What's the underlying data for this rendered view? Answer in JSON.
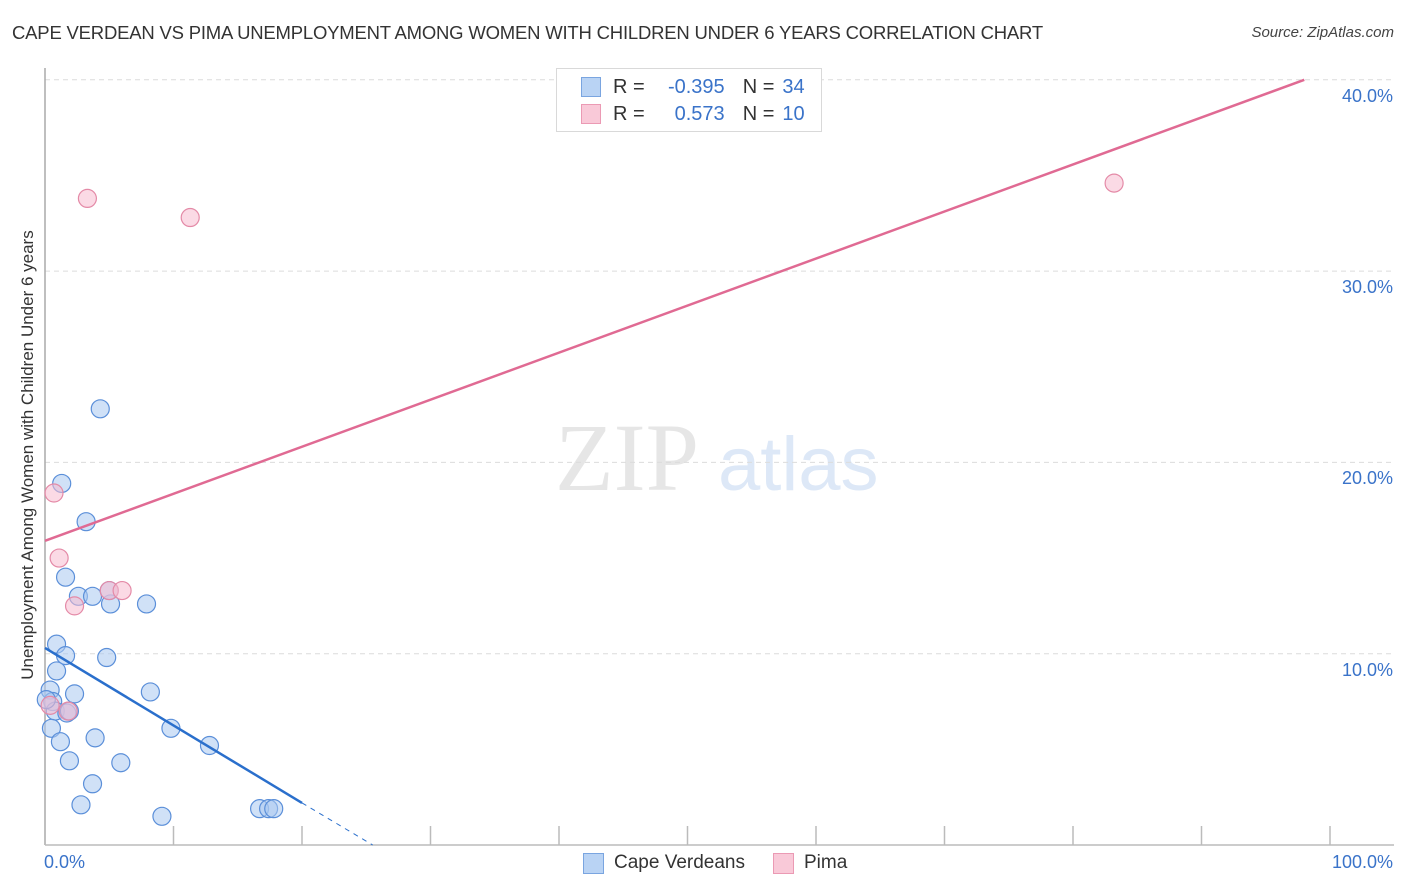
{
  "header": {
    "title": "CAPE VERDEAN VS PIMA UNEMPLOYMENT AMONG WOMEN WITH CHILDREN UNDER 6 YEARS CORRELATION CHART",
    "source": "Source: ZipAtlas.com"
  },
  "legend": {
    "rows": [
      {
        "r_label": "R =",
        "r_value": "-0.395",
        "n_label": "N =",
        "n_value": "34"
      },
      {
        "r_label": "R =",
        "r_value": "0.573",
        "n_label": "N =",
        "n_value": "10"
      }
    ],
    "series": [
      {
        "name": "Cape Verdeans",
        "color": "#a9c8f0"
      },
      {
        "name": "Pima",
        "color": "#f7bccf"
      }
    ]
  },
  "axes": {
    "y_label": "Unemployment Among Women with Children Under 6 years",
    "x_min_label": "0.0%",
    "x_max_label": "100.0%",
    "y_tick_labels": [
      "10.0%",
      "20.0%",
      "30.0%",
      "40.0%"
    ]
  },
  "watermark": {
    "zip": "ZIP",
    "atlas": "atlas"
  },
  "colors": {
    "blue_fill": "#a9c8f0",
    "blue_stroke": "#5b8fd9",
    "blue_line": "#2a6fcc",
    "pink_fill": "#f7bccf",
    "pink_stroke": "#e48aa7",
    "pink_line": "#e06a93",
    "accent_text": "#3a73c9"
  },
  "chart_data": {
    "type": "scatter",
    "title": "CAPE VERDEAN VS PIMA UNEMPLOYMENT AMONG WOMEN WITH CHILDREN UNDER 6 YEARS CORRELATION CHART",
    "xlabel": "",
    "ylabel": "Unemployment Among Women with Children Under 6 years",
    "xlim": [
      0,
      100
    ],
    "ylim": [
      0,
      41
    ],
    "x_ticks": [
      "0.0%",
      "100.0%"
    ],
    "y_ticks": [
      "10.0%",
      "20.0%",
      "30.0%",
      "40.0%"
    ],
    "grid": "horizontal dashed",
    "legend_position": "top-center and bottom",
    "series": [
      {
        "name": "Cape Verdeans",
        "R": -0.395,
        "N": 34,
        "points": [
          [
            4.3,
            22.8
          ],
          [
            1.3,
            18.9
          ],
          [
            3.2,
            16.9
          ],
          [
            1.6,
            14.0
          ],
          [
            2.6,
            13.0
          ],
          [
            3.7,
            13.0
          ],
          [
            5.1,
            12.6
          ],
          [
            5.0,
            13.3
          ],
          [
            7.9,
            12.6
          ],
          [
            0.9,
            10.5
          ],
          [
            1.6,
            9.9
          ],
          [
            4.8,
            9.8
          ],
          [
            0.9,
            9.1
          ],
          [
            2.3,
            7.9
          ],
          [
            8.2,
            8.0
          ],
          [
            0.4,
            8.1
          ],
          [
            0.6,
            7.5
          ],
          [
            0.8,
            7.0
          ],
          [
            1.7,
            6.9
          ],
          [
            1.9,
            7.0
          ],
          [
            0.5,
            6.1
          ],
          [
            1.2,
            5.4
          ],
          [
            9.8,
            6.1
          ],
          [
            3.9,
            5.6
          ],
          [
            12.8,
            5.2
          ],
          [
            1.9,
            4.4
          ],
          [
            5.9,
            4.3
          ],
          [
            3.7,
            3.2
          ],
          [
            2.8,
            2.1
          ],
          [
            9.1,
            1.5
          ],
          [
            16.7,
            1.9
          ],
          [
            17.4,
            1.9
          ],
          [
            17.8,
            1.9
          ],
          [
            0.1,
            7.6
          ]
        ],
        "trendline": {
          "x": [
            0,
            20
          ],
          "y": [
            10.3,
            2.2
          ],
          "dashed_extension": {
            "x": [
              20,
              25.5
            ],
            "y": [
              2.2,
              0
            ]
          }
        }
      },
      {
        "name": "Pima",
        "R": 0.573,
        "N": 10,
        "points": [
          [
            3.3,
            33.8
          ],
          [
            11.3,
            32.8
          ],
          [
            83.2,
            34.6
          ],
          [
            0.7,
            18.4
          ],
          [
            1.1,
            15.0
          ],
          [
            2.3,
            12.5
          ],
          [
            5.0,
            13.3
          ],
          [
            6.0,
            13.3
          ],
          [
            1.8,
            7.0
          ],
          [
            0.4,
            7.3
          ]
        ],
        "trendline": {
          "x": [
            0,
            98
          ],
          "y": [
            15.9,
            40.0
          ]
        }
      }
    ]
  }
}
